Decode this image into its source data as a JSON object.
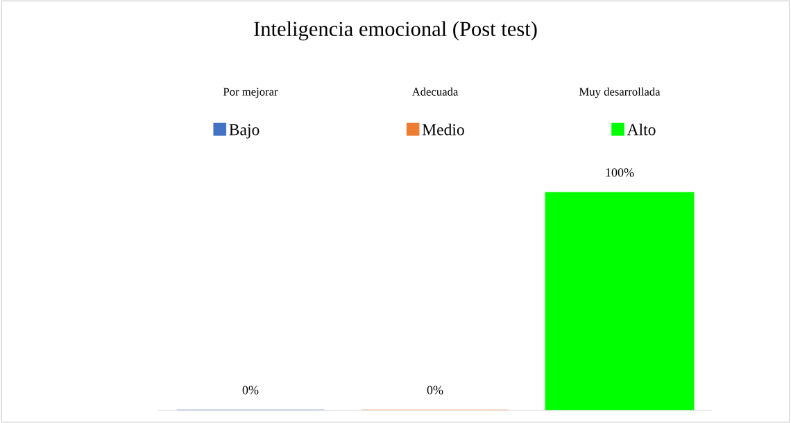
{
  "chart_data": {
    "type": "bar",
    "title": "Inteligencia emocional (Post test)",
    "categories": [
      "Por mejorar",
      "Adecuada",
      "Muy desarrollada"
    ],
    "series": [
      {
        "name": "Bajo",
        "color": "#4472c4",
        "values": [
          0,
          null,
          null
        ],
        "value_labels": [
          "0%",
          null,
          null
        ]
      },
      {
        "name": "Medio",
        "color": "#ed7d31",
        "values": [
          null,
          0,
          null
        ],
        "value_labels": [
          null,
          "0%",
          null
        ]
      },
      {
        "name": "Alto",
        "color": "#00ff00",
        "values": [
          null,
          null,
          100
        ],
        "value_labels": [
          null,
          null,
          "100%"
        ]
      }
    ],
    "legend": "top",
    "grid": false
  }
}
